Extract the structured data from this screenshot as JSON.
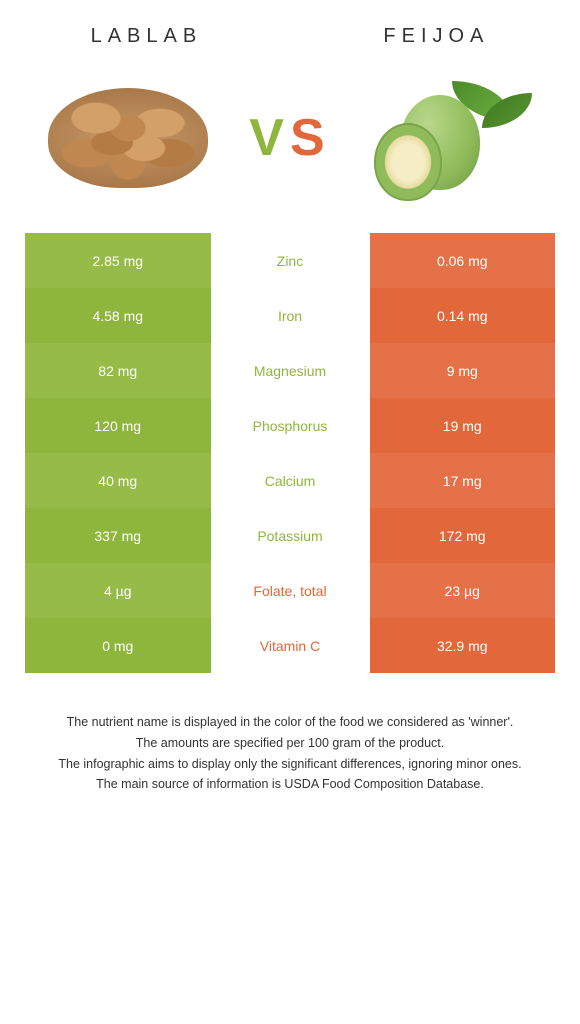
{
  "left_name": "LABLAB",
  "right_name": "FEIJOA",
  "vs_v": "V",
  "vs_s": "S",
  "colors": {
    "left": "#8fb63c",
    "right": "#e2673a",
    "bg": "#ffffff"
  },
  "rows": [
    {
      "nutrient": "Zinc",
      "left": "2.85 mg",
      "right": "0.06 mg",
      "winner": "left",
      "hl": true
    },
    {
      "nutrient": "Iron",
      "left": "4.58 mg",
      "right": "0.14 mg",
      "winner": "left",
      "hl": false
    },
    {
      "nutrient": "Magnesium",
      "left": "82 mg",
      "right": "9 mg",
      "winner": "left",
      "hl": true
    },
    {
      "nutrient": "Phosphorus",
      "left": "120 mg",
      "right": "19 mg",
      "winner": "left",
      "hl": false
    },
    {
      "nutrient": "Calcium",
      "left": "40 mg",
      "right": "17 mg",
      "winner": "left",
      "hl": true
    },
    {
      "nutrient": "Potassium",
      "left": "337 mg",
      "right": "172 mg",
      "winner": "left",
      "hl": false
    },
    {
      "nutrient": "Folate, total",
      "left": "4 µg",
      "right": "23 µg",
      "winner": "right",
      "hl": true
    },
    {
      "nutrient": "Vitamin C",
      "left": "0 mg",
      "right": "32.9 mg",
      "winner": "right",
      "hl": false
    }
  ],
  "footer": [
    "The nutrient name is displayed in the color of the food we considered as 'winner'.",
    "The amounts are specified per 100 gram of the product.",
    "The infographic aims to display only the significant differences, ignoring minor ones.",
    "The main source of information is USDA Food Composition Database."
  ]
}
